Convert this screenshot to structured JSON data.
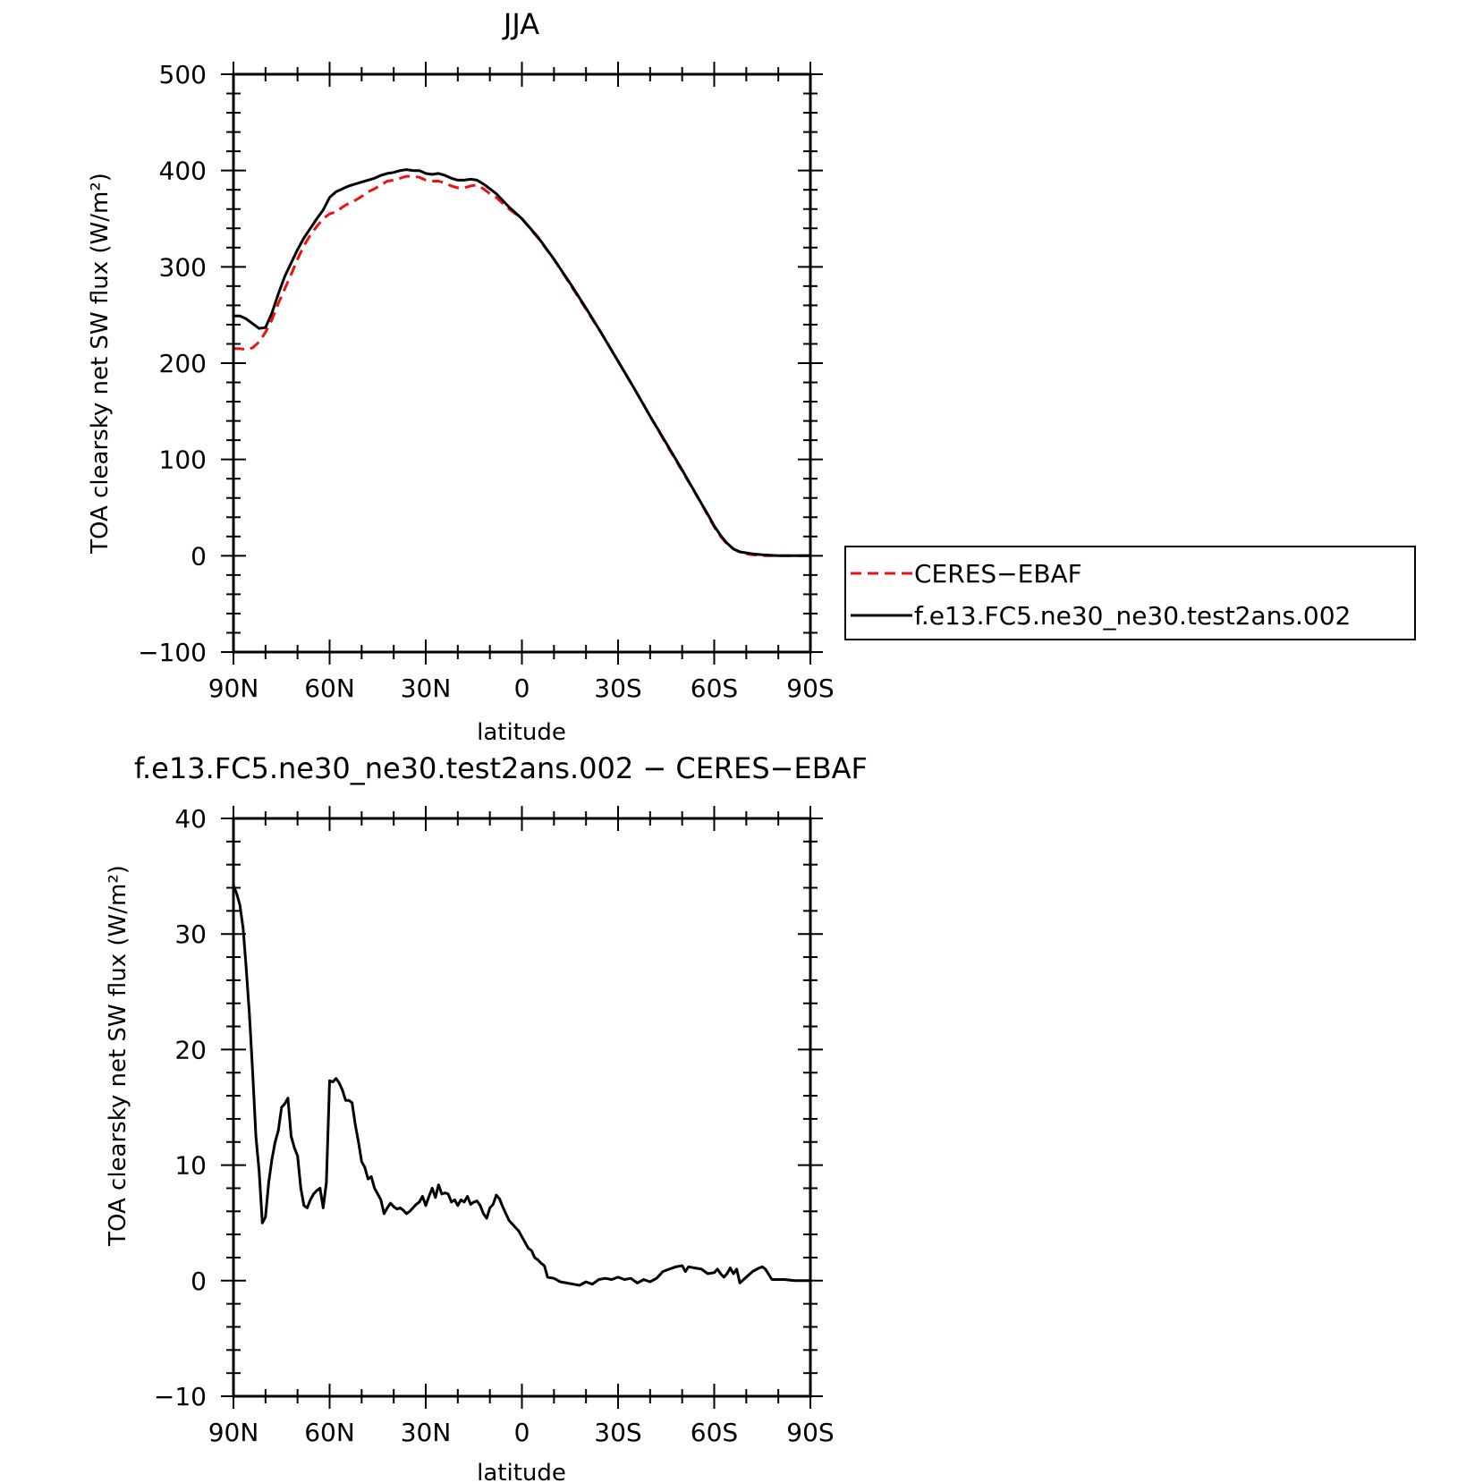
{
  "colors": {
    "obs": "#ee1111",
    "model": "#000000",
    "background": "#ffffff"
  },
  "chart_data": [
    {
      "type": "line",
      "title": "JJA",
      "xlabel": "latitude",
      "ylabel": "TOA clearsky net SW flux (W/m²)",
      "xlim": [
        90,
        -90
      ],
      "ylim": [
        -100,
        500
      ],
      "xticks": [
        {
          "value": 90,
          "label": "90N"
        },
        {
          "value": 60,
          "label": "60N"
        },
        {
          "value": 30,
          "label": "30N"
        },
        {
          "value": 0,
          "label": "0"
        },
        {
          "value": -30,
          "label": "30S"
        },
        {
          "value": -60,
          "label": "60S"
        },
        {
          "value": -90,
          "label": "90S"
        }
      ],
      "yticks": [
        {
          "value": -100,
          "label": "−100"
        },
        {
          "value": 0,
          "label": "0"
        },
        {
          "value": 100,
          "label": "100"
        },
        {
          "value": 200,
          "label": "200"
        },
        {
          "value": 300,
          "label": "300"
        },
        {
          "value": 400,
          "label": "400"
        },
        {
          "value": 500,
          "label": "500"
        }
      ],
      "legend_position": "right",
      "series": [
        {
          "name": "CERES−EBAF",
          "color": "#ee1111",
          "style": "dashed",
          "x": [
            90,
            88,
            86,
            84,
            82,
            80,
            78,
            76,
            74,
            72,
            70,
            68,
            66,
            64,
            62,
            60,
            58,
            56,
            54,
            52,
            50,
            48,
            46,
            44,
            42,
            40,
            38,
            36,
            34,
            32,
            30,
            28,
            26,
            24,
            22,
            20,
            18,
            16,
            14,
            12,
            10,
            8,
            6,
            4,
            2,
            0,
            -5,
            -10,
            -15,
            -20,
            -25,
            -30,
            -35,
            -40,
            -45,
            -50,
            -55,
            -58,
            -60,
            -62,
            -64,
            -66,
            -68,
            -70,
            -72,
            -75,
            -80,
            -85,
            -90
          ],
          "y": [
            215,
            215,
            214,
            216,
            222,
            232,
            245,
            262,
            277,
            292,
            308,
            322,
            333,
            342,
            350,
            355,
            357,
            362,
            366,
            369,
            373,
            378,
            381,
            385,
            389,
            390,
            392,
            394,
            394,
            393,
            390,
            389,
            389,
            387,
            384,
            382,
            382,
            384,
            385,
            381,
            376,
            372,
            366,
            360,
            355,
            350,
            330,
            308,
            282,
            256,
            230,
            202,
            174,
            145,
            116,
            88,
            60,
            42,
            30,
            20,
            12,
            7,
            4,
            2,
            1,
            0,
            0,
            0,
            0
          ]
        },
        {
          "name": "f.e13.FC5.ne30_ne30.test2ans.002",
          "color": "#000000",
          "style": "solid",
          "x": [
            90,
            88,
            86,
            84,
            82,
            80,
            78,
            76,
            74,
            72,
            70,
            68,
            66,
            64,
            62,
            60,
            58,
            56,
            54,
            52,
            50,
            48,
            46,
            44,
            42,
            40,
            38,
            36,
            34,
            32,
            30,
            28,
            26,
            24,
            22,
            20,
            18,
            16,
            14,
            12,
            10,
            8,
            6,
            4,
            2,
            0,
            -5,
            -10,
            -15,
            -20,
            -25,
            -30,
            -35,
            -40,
            -45,
            -50,
            -55,
            -58,
            -60,
            -62,
            -64,
            -66,
            -68,
            -70,
            -72,
            -75,
            -80,
            -85,
            -90
          ],
          "y": [
            249,
            249,
            246,
            241,
            236,
            237,
            252,
            272,
            290,
            304,
            318,
            330,
            340,
            350,
            359,
            372,
            378,
            381,
            384,
            386,
            388,
            390,
            392,
            395,
            397,
            398,
            400,
            401,
            400,
            400,
            397,
            396,
            397,
            395,
            392,
            390,
            390,
            391,
            390,
            386,
            381,
            376,
            369,
            362,
            356,
            350,
            331,
            308,
            283,
            257,
            230,
            202,
            174,
            145,
            117,
            89,
            60,
            43,
            31,
            21,
            13,
            7,
            4,
            3,
            2,
            1,
            0,
            0,
            0
          ]
        }
      ]
    },
    {
      "type": "line",
      "title": "f.e13.FC5.ne30_ne30.test2ans.002 − CERES−EBAF",
      "xlabel": "latitude",
      "ylabel": "TOA clearsky net SW flux (W/m²)",
      "xlim": [
        90,
        -90
      ],
      "ylim": [
        -10,
        40
      ],
      "xticks": [
        {
          "value": 90,
          "label": "90N"
        },
        {
          "value": 60,
          "label": "60N"
        },
        {
          "value": 30,
          "label": "30N"
        },
        {
          "value": 0,
          "label": "0"
        },
        {
          "value": -30,
          "label": "30S"
        },
        {
          "value": -60,
          "label": "60S"
        },
        {
          "value": -90,
          "label": "90S"
        }
      ],
      "yticks": [
        {
          "value": -10,
          "label": "−10"
        },
        {
          "value": 0,
          "label": "0"
        },
        {
          "value": 10,
          "label": "10"
        },
        {
          "value": 20,
          "label": "20"
        },
        {
          "value": 30,
          "label": "30"
        },
        {
          "value": 40,
          "label": "40"
        }
      ],
      "series": [
        {
          "color": "#000000",
          "style": "solid",
          "x": [
            90,
            89,
            88,
            87,
            86,
            85,
            84,
            83,
            82,
            81,
            80,
            79,
            78,
            77,
            76,
            75,
            74,
            73,
            72,
            71,
            70,
            69,
            68,
            67,
            66,
            65,
            64,
            63,
            62,
            61,
            60,
            59,
            58,
            57,
            56,
            55,
            54,
            53,
            52,
            51,
            50,
            49,
            48,
            47,
            46,
            45,
            44,
            43,
            42,
            41,
            40,
            39,
            38,
            37,
            36,
            35,
            34,
            33,
            32,
            31,
            30,
            29,
            28,
            27,
            26,
            25,
            24,
            23,
            22,
            21,
            20,
            19,
            18,
            17,
            16,
            15,
            14,
            13,
            12,
            11,
            10,
            9,
            8,
            7,
            6,
            5,
            4,
            3,
            2,
            1,
            0,
            -1,
            -2,
            -3,
            -4,
            -5,
            -6,
            -7,
            -8,
            -10,
            -12,
            -14,
            -16,
            -18,
            -20,
            -22,
            -24,
            -26,
            -28,
            -30,
            -32,
            -34,
            -36,
            -38,
            -40,
            -42,
            -44,
            -46,
            -48,
            -50,
            -51,
            -52,
            -54,
            -56,
            -58,
            -60,
            -61,
            -62,
            -63,
            -64,
            -65,
            -66,
            -67,
            -68,
            -70,
            -72,
            -74,
            -75,
            -76,
            -78,
            -80,
            -82,
            -85,
            -90
          ],
          "y": [
            34.2,
            33.5,
            32.5,
            30.5,
            27,
            23,
            18,
            12.5,
            9.5,
            5,
            5.5,
            8.5,
            10.5,
            12,
            13,
            15,
            15.3,
            15.8,
            12.5,
            11.5,
            10.8,
            8,
            6.5,
            6.3,
            7,
            7.5,
            7.8,
            8,
            6.3,
            8.5,
            17.3,
            17.2,
            17.5,
            17.1,
            16.5,
            15.6,
            15.6,
            15.4,
            13.5,
            12,
            10.3,
            9.8,
            8.8,
            9,
            8,
            7.5,
            7,
            5.8,
            6.3,
            6.7,
            6.4,
            6.2,
            6.3,
            6.1,
            5.8,
            6,
            6.3,
            6.6,
            6.8,
            7.3,
            6.5,
            7.3,
            8,
            7.2,
            8.3,
            7.5,
            7.6,
            7.5,
            6.8,
            7,
            6.5,
            7,
            6.8,
            7.3,
            6.6,
            6.8,
            6.9,
            6.5,
            5.8,
            5.4,
            6.3,
            6.6,
            7.4,
            7.1,
            6.4,
            5.8,
            5.2,
            4.9,
            4.6,
            4.3,
            3.8,
            3.3,
            2.8,
            2.6,
            2,
            1.8,
            1.5,
            1.3,
            0.3,
            0.2,
            -0.1,
            -0.2,
            -0.3,
            -0.4,
            -0.1,
            -0.3,
            0.1,
            0.2,
            0.1,
            0.3,
            0.1,
            0.2,
            -0.2,
            0.1,
            -0.1,
            0.2,
            0.8,
            1.0,
            1.2,
            1.3,
            0.8,
            1.2,
            1.1,
            1.0,
            0.6,
            0.7,
            1.0,
            0.6,
            0.3,
            0.6,
            1.1,
            0.6,
            1.0,
            -0.2,
            0.3,
            0.8,
            1.1,
            1.2,
            1.0,
            0.1,
            0.1,
            0.1,
            0.0,
            0.0
          ]
        }
      ]
    }
  ]
}
